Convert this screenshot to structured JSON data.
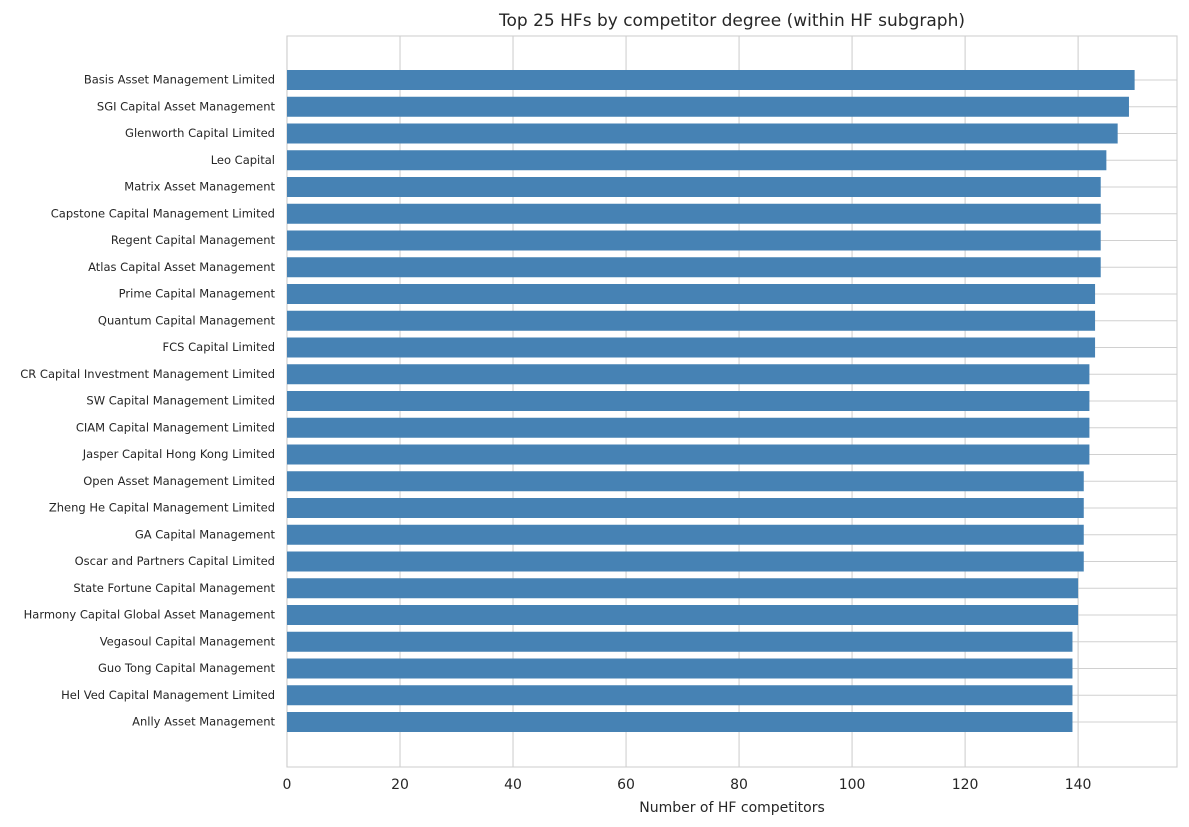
{
  "chart_data": {
    "type": "barh",
    "title": "Top 25 HFs by competitor degree (within HF subgraph)",
    "xlabel": "Number of HF competitors",
    "categories": [
      "Basis Asset Management Limited",
      "SGI Capital Asset Management",
      "Glenworth Capital Limited",
      "Leo Capital",
      "Matrix Asset Management",
      "Capstone Capital Management Limited",
      "Regent Capital Management",
      "Atlas Capital Asset Management",
      "Prime Capital Management",
      "Quantum Capital Management",
      "FCS Capital Limited",
      "CR Capital Investment Management Limited",
      "SW Capital Management Limited",
      "CIAM Capital Management Limited",
      "Jasper Capital Hong Kong Limited",
      "Open Asset Management Limited",
      "Zheng He Capital Management Limited",
      "GA Capital Management",
      "Oscar and Partners Capital Limited",
      "State Fortune Capital Management",
      "Harmony Capital Global Asset Management",
      "Vegasoul Capital Management",
      "Guo Tong Capital Management",
      "Hel Ved Capital Management Limited",
      "Anlly Asset Management"
    ],
    "values": [
      150,
      149,
      147,
      145,
      144,
      144,
      144,
      144,
      143,
      143,
      143,
      142,
      142,
      142,
      142,
      141,
      141,
      141,
      141,
      140,
      140,
      139,
      139,
      139,
      139
    ],
    "color": "#4682b4",
    "xlim": [
      0,
      157.5
    ],
    "xticks": [
      0,
      20,
      40,
      60,
      80,
      100,
      120,
      140
    ],
    "grid": true
  }
}
